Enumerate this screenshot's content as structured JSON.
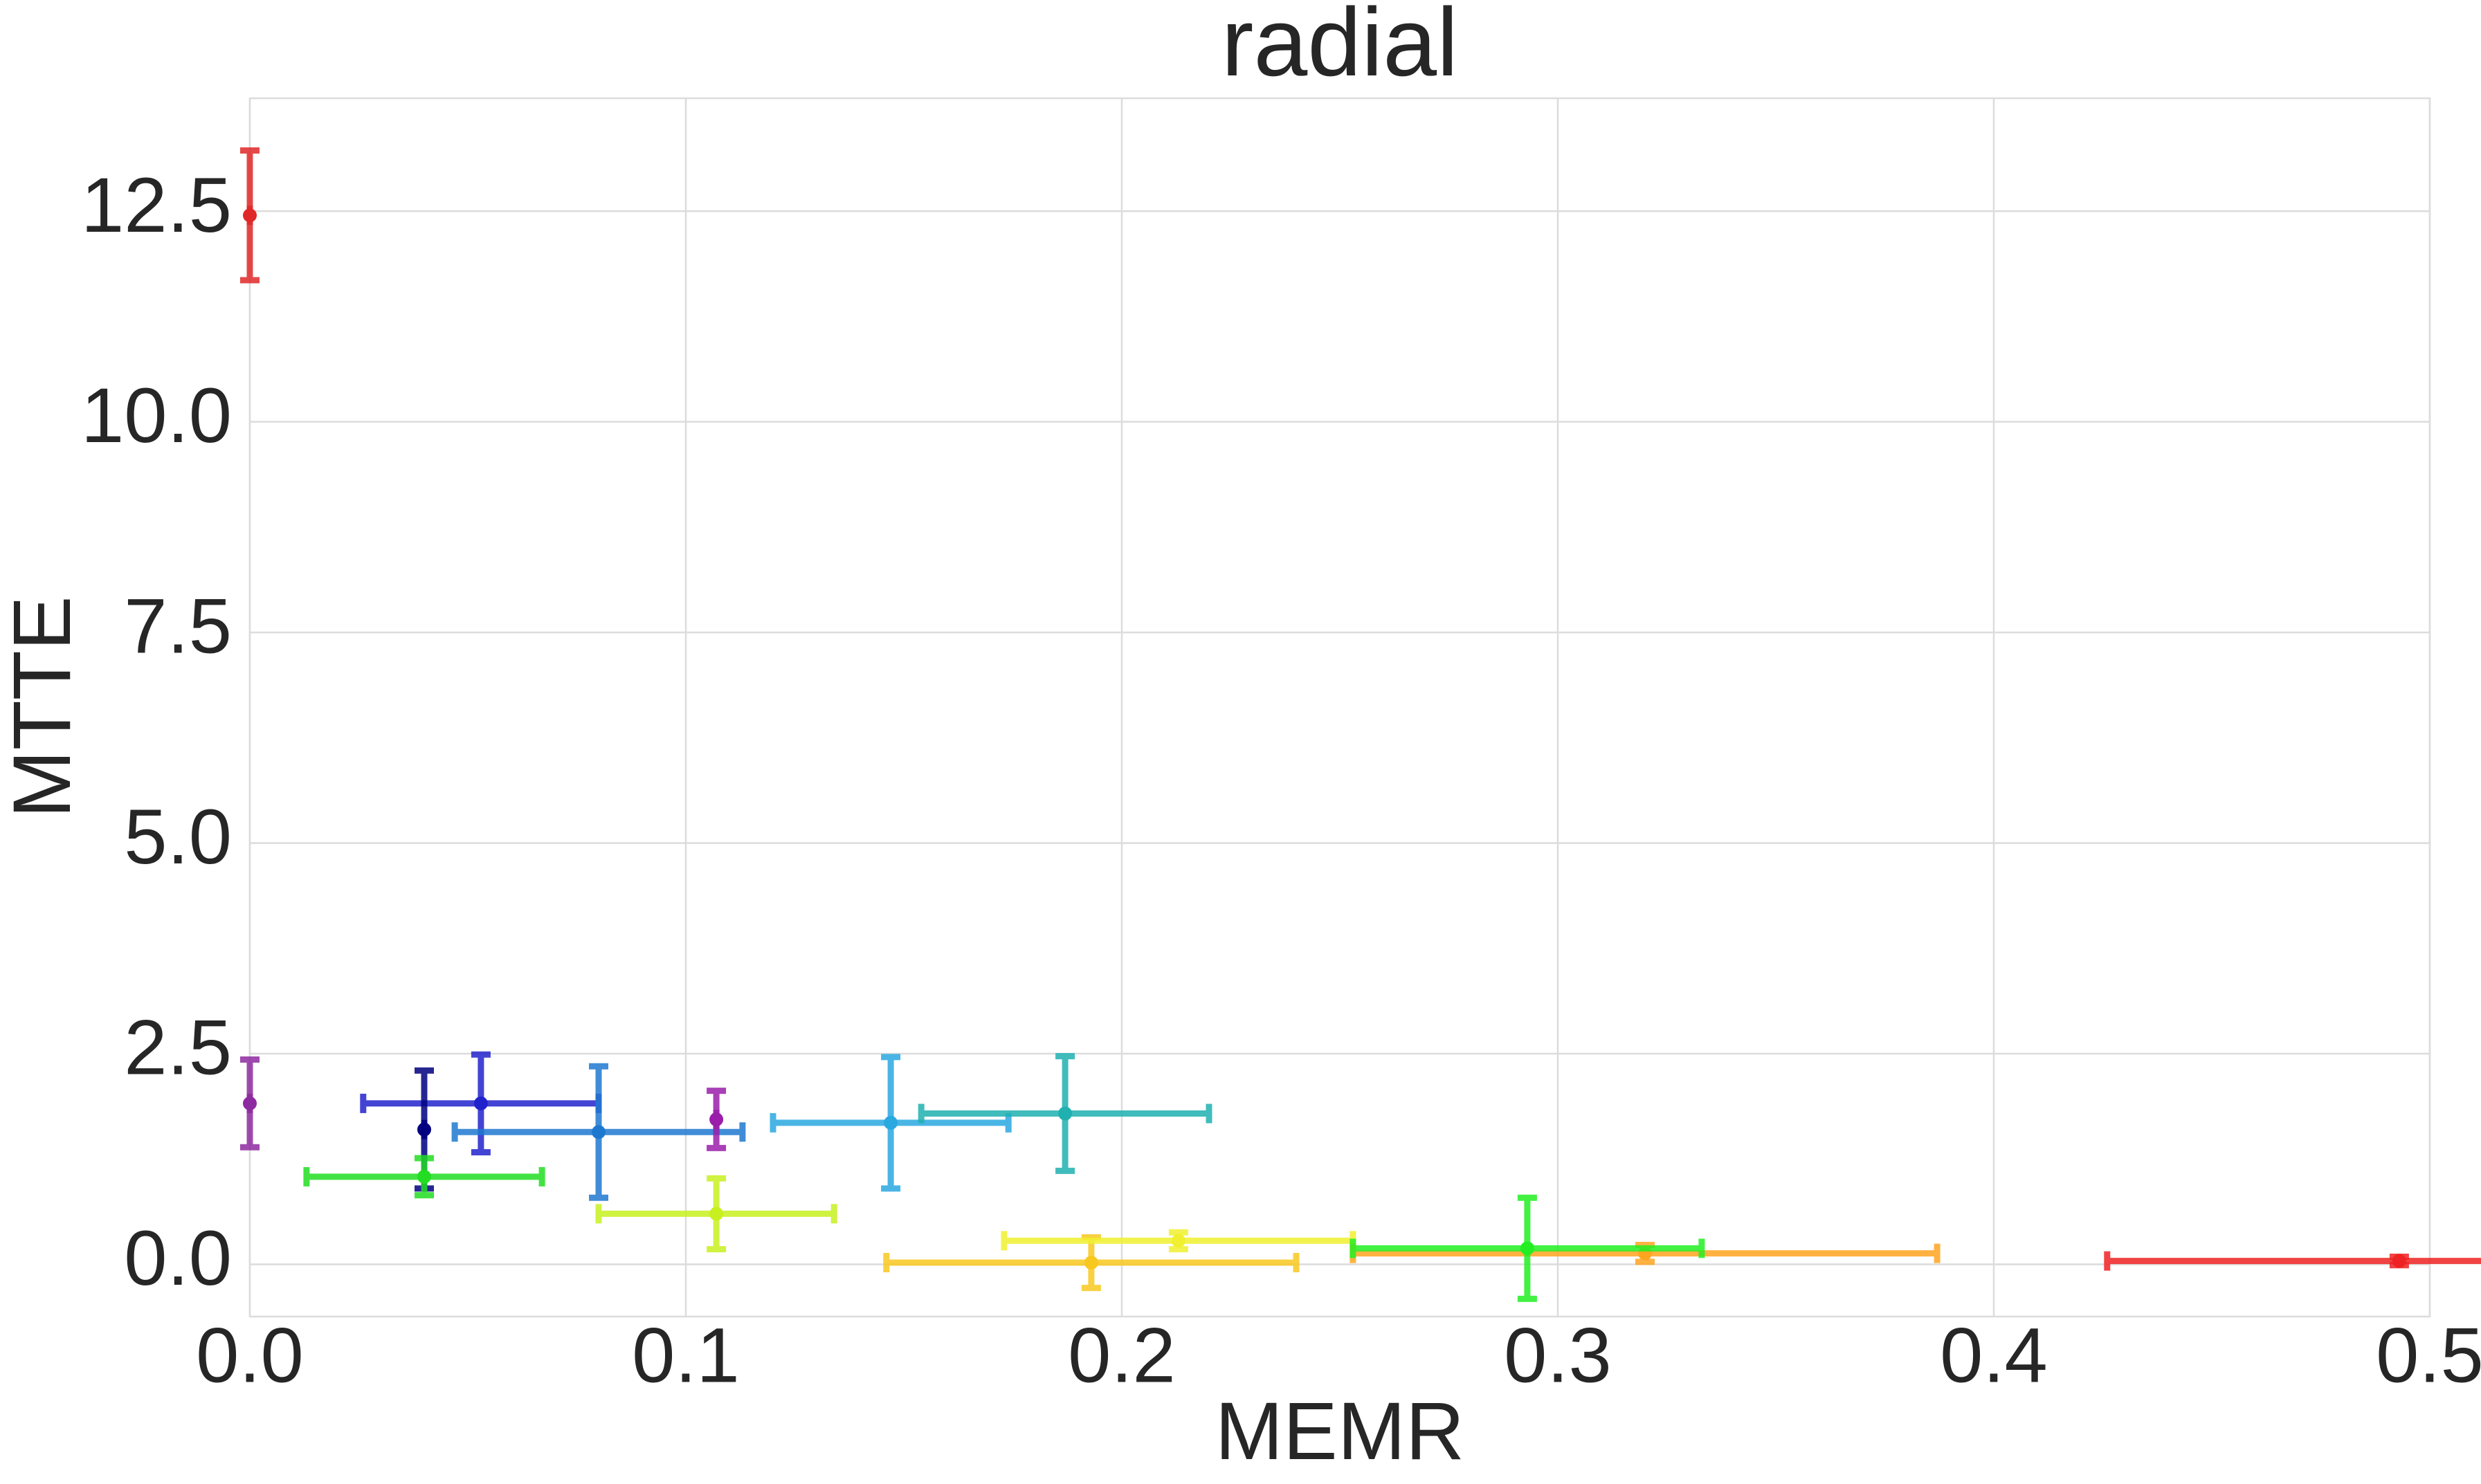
{
  "chart_data": {
    "type": "errorbar",
    "title": "radial",
    "xlabel": "MEMR",
    "ylabel": "MTTE",
    "xlim": [
      0,
      0.5
    ],
    "ylim": [
      -0.62,
      13.84
    ],
    "xticks": [
      {
        "value": 0,
        "label": "0.0"
      },
      0.1,
      0.2,
      0.3,
      0.4,
      0.5
    ],
    "yticks": [
      {
        "value": 0,
        "label": "0.0"
      },
      2.5,
      {
        "value": 5,
        "label": "5.0"
      },
      7.5,
      {
        "value": 10,
        "label": "10.0"
      },
      12.5
    ],
    "grid": true,
    "points": [
      {
        "x": 0,
        "y": 12.45,
        "xerr": 0,
        "yerr": 0.77,
        "color": "#e02828"
      },
      {
        "x": 0,
        "y": 1.91,
        "xerr": 0,
        "yerr": 0.52,
        "color": "#8e2aa0"
      },
      {
        "x": 0.053,
        "y": 1.91,
        "xerr": 0.027,
        "yerr": 0.58,
        "color": "#2222cc"
      },
      {
        "x": 0.04,
        "y": 1.6,
        "xerr": 0,
        "yerr": 0.7,
        "color": "#000080"
      },
      {
        "x": 0.08,
        "y": 1.57,
        "xerr": 0.033,
        "yerr": 0.78,
        "color": "#1e78d0"
      },
      {
        "x": 0.04,
        "y": 1.04,
        "xerr": 0.027,
        "yerr": 0.22,
        "color": "#22dd22"
      },
      {
        "x": 0.107,
        "y": 1.72,
        "xerr": 0,
        "yerr": 0.34,
        "color": "#9a1eaa"
      },
      {
        "x": 0.147,
        "y": 1.68,
        "xerr": 0.027,
        "yerr": 0.78,
        "color": "#2aa8e0"
      },
      {
        "x": 0.187,
        "y": 1.79,
        "xerr": 0.033,
        "yerr": 0.68,
        "color": "#20b0b0"
      },
      {
        "x": 0.107,
        "y": 0.6,
        "xerr": 0.027,
        "yerr": 0.42,
        "color": "#c8f020"
      },
      {
        "x": 0.193,
        "y": 0.02,
        "xerr": 0.047,
        "yerr": 0.3,
        "color": "#f8c820"
      },
      {
        "x": 0.213,
        "y": 0.28,
        "xerr": 0.04,
        "yerr": 0.1,
        "color": "#f0f030"
      },
      {
        "x": 0.32,
        "y": 0.13,
        "xerr": 0.067,
        "yerr": 0.1,
        "color": "#ffa520"
      },
      {
        "x": 0.293,
        "y": 0.19,
        "xerr": 0.04,
        "yerr": 0.6,
        "color": "#22ee22"
      },
      {
        "x": 0.493,
        "y": 0.04,
        "xerr": 0.067,
        "yerr": 0.05,
        "color": "#ee2222"
      }
    ]
  }
}
